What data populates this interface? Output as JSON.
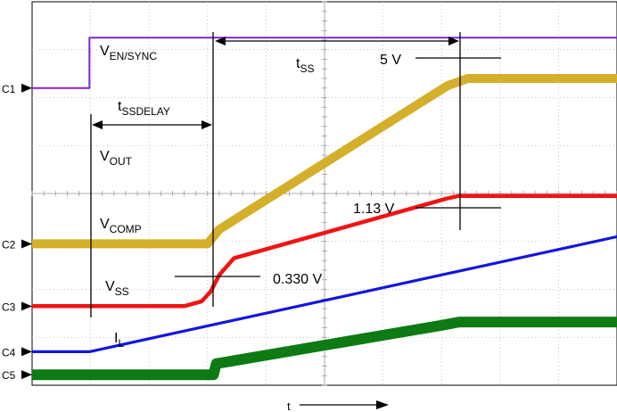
{
  "chart_data": {
    "type": "line",
    "title": "",
    "xlabel": "t",
    "ylabel": "",
    "grid": true,
    "x_divisions": 10,
    "y_divisions": 8,
    "channels": [
      {
        "name": "C1",
        "signal": "V_EN/SYNC",
        "color": "#7f24d4"
      },
      {
        "name": "C2",
        "signal": "V_OUT",
        "color": "#d4af2a"
      },
      {
        "name": "C3",
        "signal": "V_COMP",
        "color": "#f01414"
      },
      {
        "name": "C4",
        "signal": "V_SS",
        "color": "#1414dc"
      },
      {
        "name": "C5",
        "signal": "I_L",
        "color": "#0e7a14"
      }
    ],
    "series": [
      {
        "name": "V_EN/SYNC",
        "x": [
          0,
          0.98,
          0.98,
          10
        ],
        "y": [
          6.2,
          6.2,
          7.25,
          7.25
        ]
      },
      {
        "name": "V_OUT",
        "x": [
          0,
          3.0,
          3.2,
          7.1,
          7.45,
          10
        ],
        "y": [
          2.95,
          2.95,
          3.25,
          6.25,
          6.4,
          6.4
        ]
      },
      {
        "name": "V_COMP",
        "x": [
          0,
          2.6,
          2.9,
          3.05,
          3.2,
          3.45,
          7.1,
          7.3,
          10
        ],
        "y": [
          1.65,
          1.65,
          1.75,
          1.95,
          2.3,
          2.65,
          3.9,
          3.95,
          3.95
        ]
      },
      {
        "name": "V_SS",
        "x": [
          0,
          0.98,
          10
        ],
        "y": [
          0.7,
          0.7,
          3.1
        ]
      },
      {
        "name": "I_L",
        "x": [
          0,
          3.1,
          3.15,
          7.0,
          7.3,
          10
        ],
        "y": [
          0.22,
          0.22,
          0.45,
          1.25,
          1.32,
          1.32
        ]
      }
    ],
    "annotations": {
      "v_en_label": "V",
      "v_en_sub": "EN/SYNC",
      "tss_label": "t",
      "tss_sub": "SS",
      "five_v": "5 V",
      "tssdelay_label": "t",
      "tssdelay_sub": "SSDELAY",
      "vout_label": "V",
      "vout_sub": "OUT",
      "vcomp_label": "V",
      "vcomp_sub": "COMP",
      "v113": "1.13 V",
      "vss_label": "V",
      "vss_sub": "SS",
      "v0330": "0.330 V",
      "il_label": "I",
      "il_sub": "L"
    }
  }
}
